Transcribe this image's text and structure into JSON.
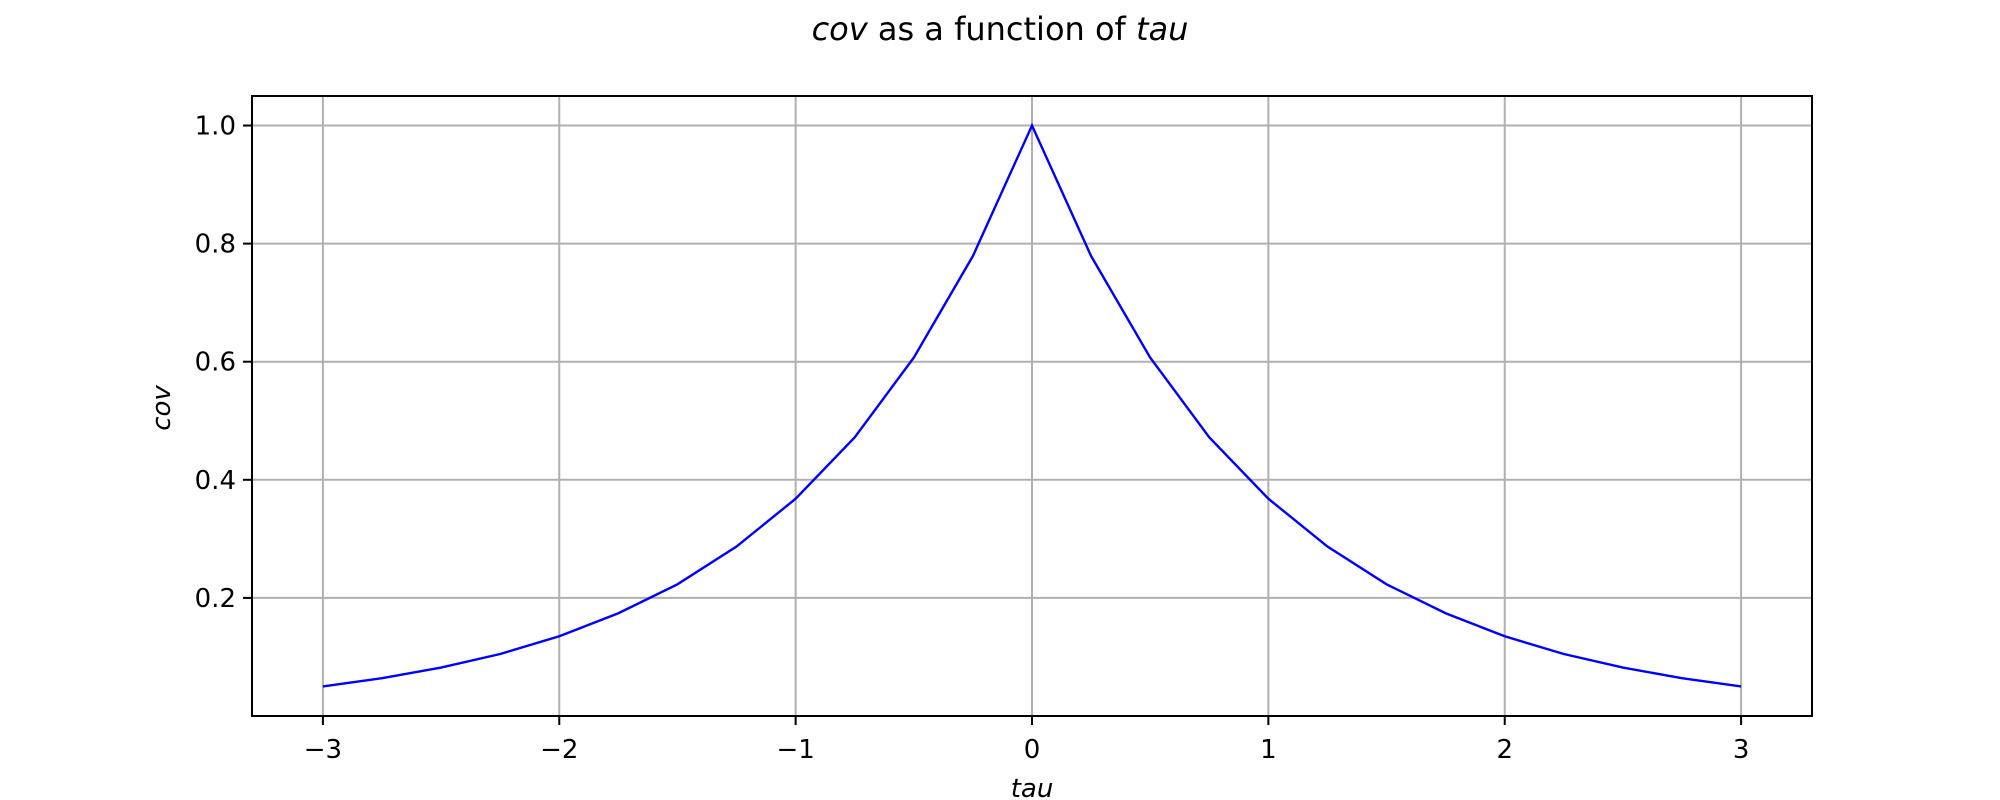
{
  "chart_data": {
    "type": "line",
    "title": {
      "italic_var": "cov",
      "middle": " as a function of ",
      "italic_param": "tau"
    },
    "xlabel": "tau",
    "ylabel": "cov",
    "xlim": [
      -3.3,
      3.3
    ],
    "ylim": [
      0.0,
      1.05
    ],
    "xticks": [
      -3,
      -2,
      -1,
      0,
      1,
      2,
      3
    ],
    "xtick_labels": [
      "−3",
      "−2",
      "−1",
      "0",
      "1",
      "2",
      "3"
    ],
    "yticks": [
      0.2,
      0.4,
      0.6,
      0.8,
      1.0
    ],
    "ytick_labels": [
      "0.2",
      "0.4",
      "0.6",
      "0.8",
      "1.0"
    ],
    "grid": true,
    "line_color": "#0000ff",
    "series": [
      {
        "x": [
          -3.0,
          -2.75,
          -2.5,
          -2.25,
          -2.0,
          -1.75,
          -1.5,
          -1.25,
          -1.0,
          -0.75,
          -0.5,
          -0.25,
          0.0,
          0.25,
          0.5,
          0.75,
          1.0,
          1.25,
          1.5,
          1.75,
          2.0,
          2.25,
          2.5,
          2.75,
          3.0
        ],
        "y": [
          0.05,
          0.064,
          0.082,
          0.105,
          0.135,
          0.174,
          0.223,
          0.287,
          0.368,
          0.472,
          0.607,
          0.779,
          1.0,
          0.779,
          0.607,
          0.472,
          0.368,
          0.287,
          0.223,
          0.174,
          0.135,
          0.105,
          0.082,
          0.064,
          0.05
        ]
      }
    ]
  }
}
